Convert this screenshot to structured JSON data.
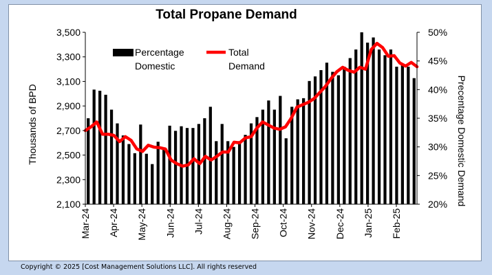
{
  "chart_data": {
    "type": "bar+line",
    "title": "Total Propane Demand",
    "ylabel_left": "Thousands of BPD",
    "ylabel_right": "Precentage Domestic Demand",
    "ylim_left": [
      2100,
      3500
    ],
    "yticks_left": [
      "2,100",
      "2,300",
      "2,500",
      "2,700",
      "2,900",
      "3,100",
      "3,300",
      "3,500"
    ],
    "ylim_right": [
      20,
      50
    ],
    "yticks_right": [
      "20%",
      "25%",
      "30%",
      "35%",
      "40%",
      "45%",
      "50%"
    ],
    "x_labels": [
      "Mar-24",
      "Apr-24",
      "May-24",
      "Jun-24",
      "Jul-24",
      "Aug-24",
      "Sep-24",
      "Oct-24",
      "Nov-24",
      "Dec-24",
      "Jan-25",
      "Feb-25"
    ],
    "legend": {
      "bar_label_line1": "Percentage",
      "bar_label_line2": "Domestic",
      "line_label_line1": "Total",
      "line_label_line2": "Demand"
    },
    "series": [
      {
        "name": "Percentage Domestic",
        "type": "bar",
        "axis": "right",
        "color": "#000000",
        "values": [
          35,
          40,
          39.8,
          39.1,
          36.5,
          34.1,
          32,
          30.5,
          28.9,
          33.9,
          28.8,
          27,
          30.9,
          29.7,
          33.7,
          32.8,
          33.6,
          33.3,
          33.3,
          34,
          35,
          37,
          31,
          34,
          31,
          30,
          31,
          32.1,
          34.1,
          35.2,
          36.5,
          38.1,
          36.5,
          38.9,
          31.5,
          37,
          38.3,
          38.5,
          41.5,
          42.3,
          43.4,
          44.7,
          43.1,
          42.5,
          44,
          45.5,
          47,
          50,
          48.2,
          49.1,
          47,
          46,
          47,
          44,
          44.3,
          44,
          42
        ]
      },
      {
        "name": "Total Demand",
        "type": "line",
        "axis": "left",
        "color": "#ff0000",
        "values": [
          2700,
          2730,
          2770,
          2670,
          2670,
          2660,
          2610,
          2650,
          2620,
          2550,
          2530,
          2580,
          2565,
          2560,
          2550,
          2460,
          2430,
          2410,
          2420,
          2470,
          2430,
          2490,
          2460,
          2490,
          2525,
          2525,
          2605,
          2600,
          2640,
          2650,
          2720,
          2770,
          2745,
          2720,
          2710,
          2730,
          2800,
          2890,
          2910,
          2930,
          2960,
          3010,
          3060,
          3125,
          3180,
          3215,
          3190,
          3175,
          3215,
          3200,
          3360,
          3410,
          3375,
          3305,
          3310,
          3250,
          3225,
          3255,
          3220
        ]
      }
    ]
  },
  "footer": {
    "copyright": "Copyright © 2025 [Cost Management Solutions LLC].  All rights reserved"
  }
}
